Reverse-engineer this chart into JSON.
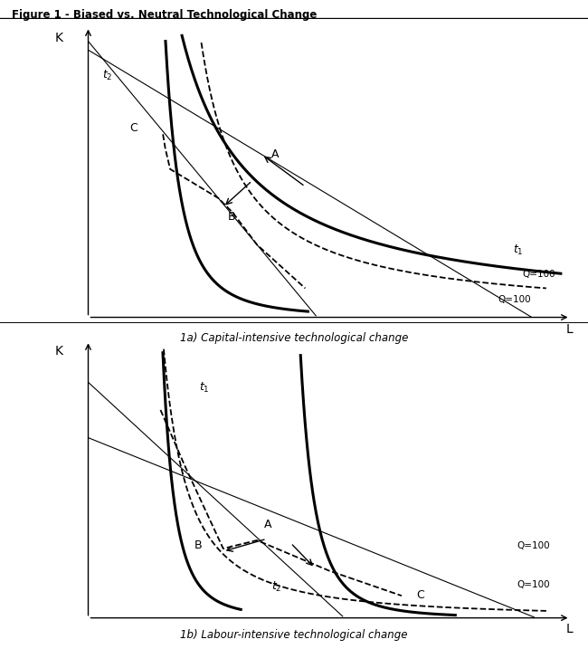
{
  "title": "Figure 1 - Biased vs. Neutral Technological Change",
  "subtitle1": "1a) Capital-intensive technological change",
  "subtitle2": "1b) Labour-intensive technological change",
  "bg_color": "#ffffff"
}
